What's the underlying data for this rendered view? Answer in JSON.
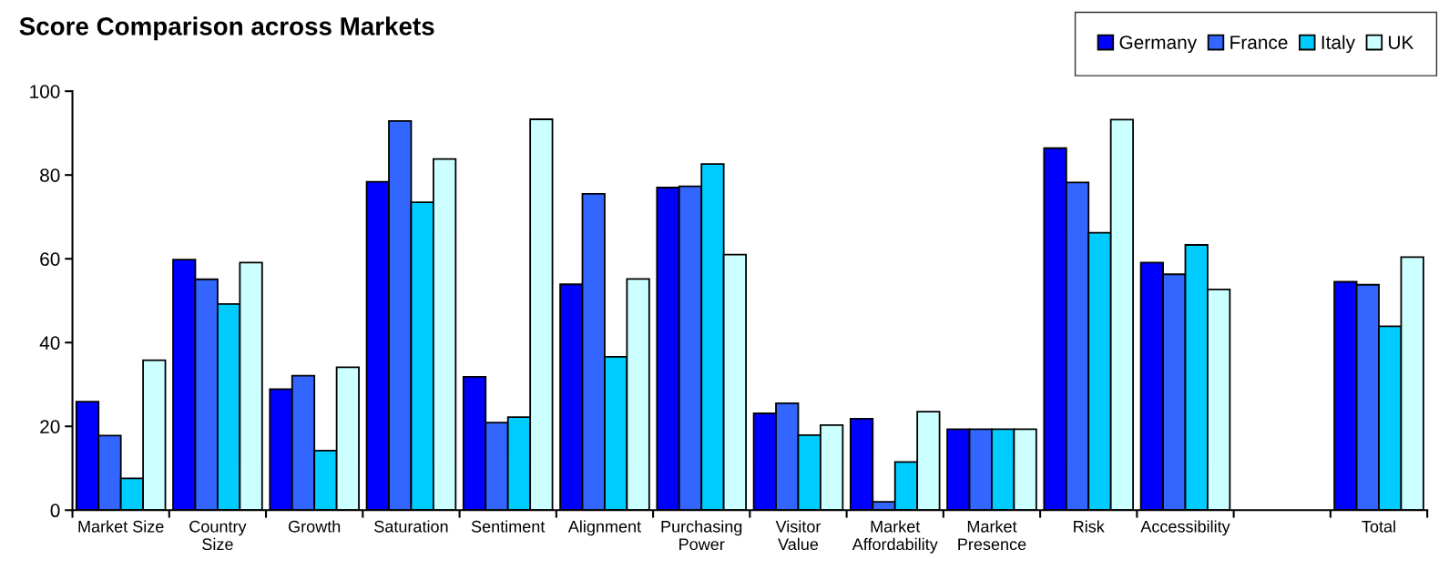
{
  "chart_data": {
    "type": "bar",
    "title": "Score Comparison across Markets",
    "categories": [
      "Market Size",
      "Country\nSize",
      "Growth",
      "Saturation",
      "Sentiment",
      "Alignment",
      "Purchasing\nPower",
      "Visitor\nValue",
      "Market\nAffordability",
      "Market\nPresence",
      "Risk",
      "Accessibility",
      null,
      "Total"
    ],
    "series": [
      {
        "name": "Germany",
        "color": "#0000ff",
        "values": [
          25.9,
          59.8,
          28.9,
          78.4,
          31.8,
          53.9,
          77.0,
          23.1,
          21.8,
          19.3,
          86.4,
          59.1,
          null,
          54.5
        ]
      },
      {
        "name": "France",
        "color": "#3366ff",
        "values": [
          17.8,
          55.1,
          32.1,
          92.9,
          20.9,
          75.5,
          77.3,
          25.5,
          2.0,
          19.3,
          78.2,
          56.3,
          null,
          53.8
        ]
      },
      {
        "name": "Italy",
        "color": "#00ccff",
        "values": [
          7.6,
          49.2,
          14.2,
          73.5,
          22.2,
          36.6,
          82.6,
          17.9,
          11.5,
          19.3,
          66.2,
          63.3,
          null,
          43.9
        ]
      },
      {
        "name": "UK",
        "color": "#ccffff",
        "values": [
          35.8,
          59.1,
          34.1,
          83.8,
          93.3,
          55.2,
          61.0,
          20.3,
          23.5,
          19.3,
          93.2,
          52.7,
          null,
          60.4
        ]
      }
    ],
    "ylim": [
      0,
      100
    ],
    "yticks": [
      0,
      20,
      40,
      60,
      80,
      100
    ],
    "grid": false,
    "legend": "top right"
  }
}
